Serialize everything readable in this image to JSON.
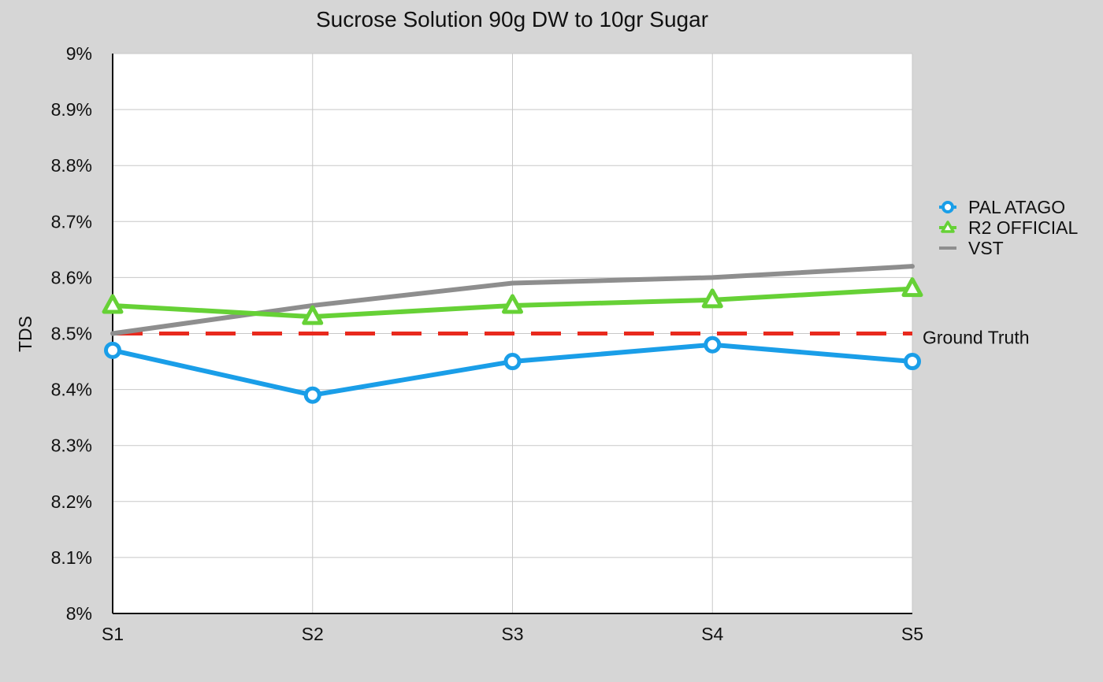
{
  "chart_data": {
    "type": "line",
    "title": "Sucrose Solution 90g DW to 10gr Sugar",
    "xlabel": "",
    "ylabel": "TDS",
    "categories": [
      "S1",
      "S2",
      "S3",
      "S4",
      "S5"
    ],
    "ylim": [
      8.0,
      9.0
    ],
    "yticks": [
      8.0,
      8.1,
      8.2,
      8.3,
      8.4,
      8.5,
      8.6,
      8.7,
      8.8,
      8.9,
      9.0
    ],
    "ytick_labels": [
      "8%",
      "8.1%",
      "8.2%",
      "8.3%",
      "8.4%",
      "8.5%",
      "8.6%",
      "8.7%",
      "8.8%",
      "8.9%",
      "9%"
    ],
    "grid": true,
    "legend_position": "right",
    "series": [
      {
        "name": "PAL ATAGO",
        "values": [
          8.47,
          8.39,
          8.45,
          8.48,
          8.45
        ],
        "color": "#1a9ee8",
        "marker": "circle"
      },
      {
        "name": "R2 OFFICIAL",
        "values": [
          8.55,
          8.53,
          8.55,
          8.56,
          8.58
        ],
        "color": "#66d136",
        "marker": "triangle"
      },
      {
        "name": "VST",
        "values": [
          8.5,
          8.55,
          8.59,
          8.6,
          8.62
        ],
        "color": "#8e8e8e",
        "marker": "none"
      }
    ],
    "reference_line": {
      "label": "Ground Truth",
      "value": 8.5,
      "color": "#e8291d",
      "style": "dashed"
    }
  }
}
